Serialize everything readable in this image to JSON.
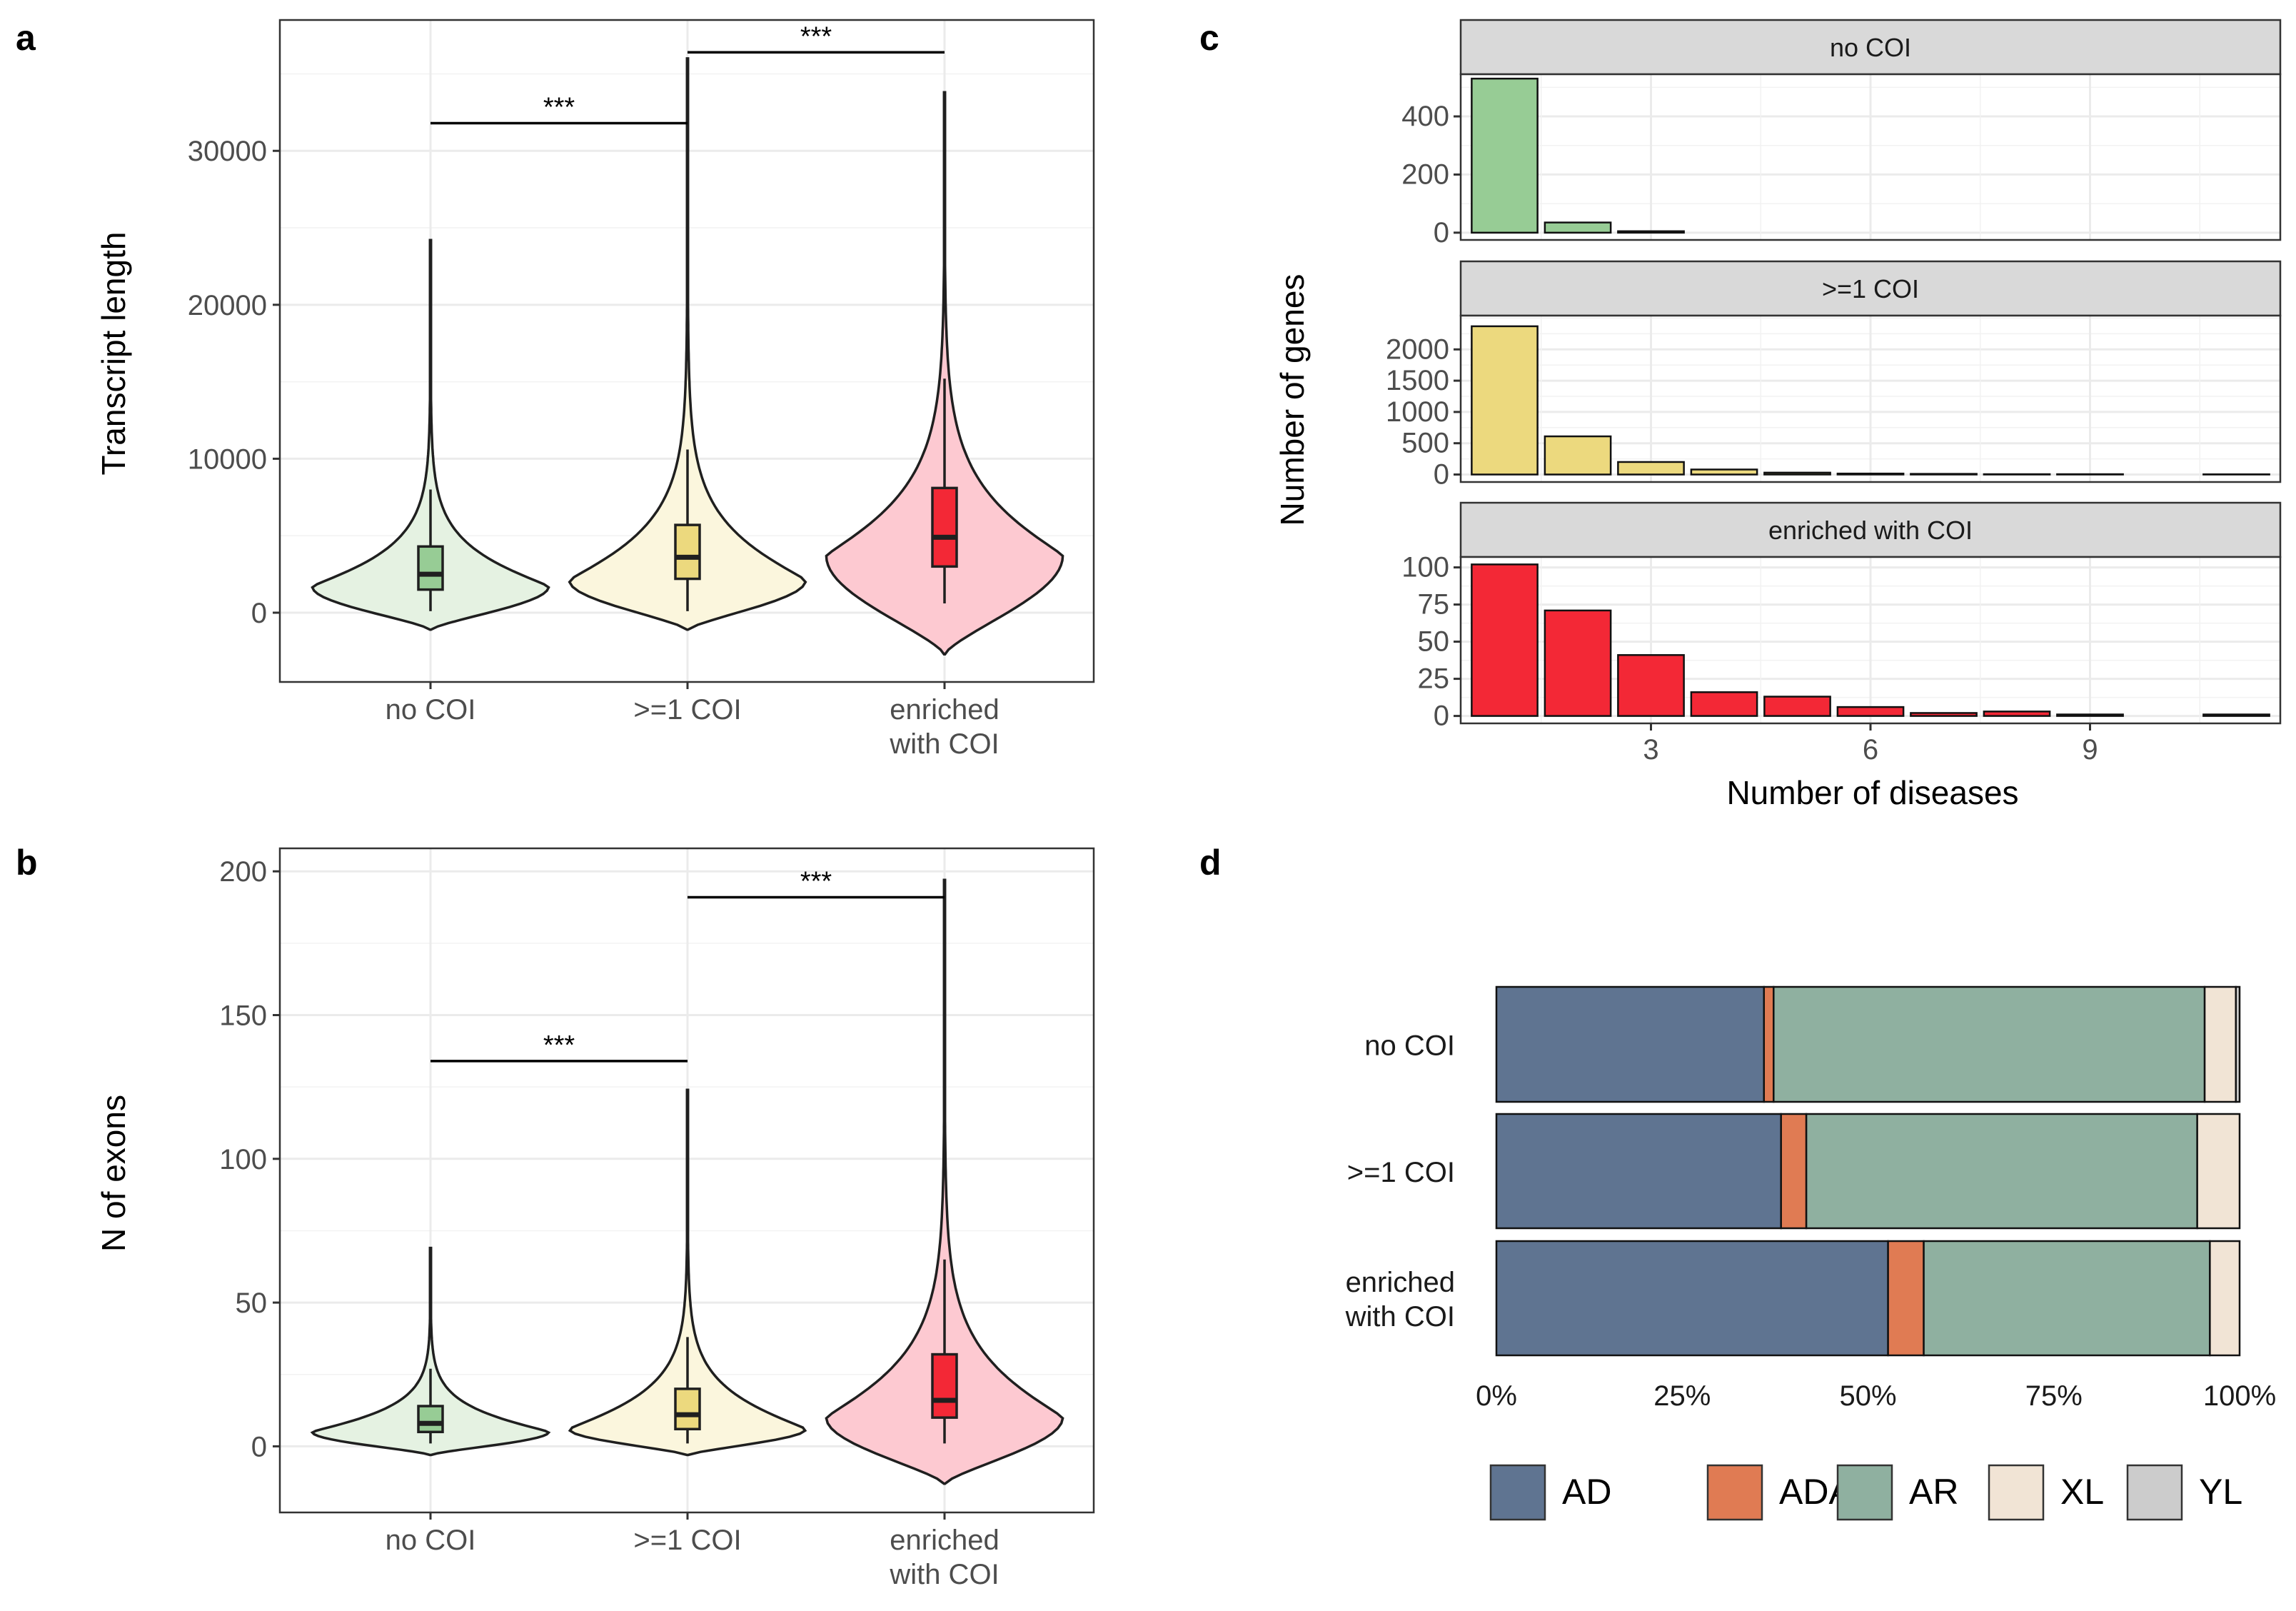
{
  "chart_data": [
    {
      "panel": "a",
      "type": "violin",
      "title": "",
      "xlabel": "",
      "ylabel": "Transcript length",
      "ylim": [
        -4500,
        38500
      ],
      "yticks": [
        0,
        10000,
        20000,
        30000
      ],
      "categories": [
        "no COI",
        ">=1 COI",
        "enriched\nwith COI"
      ],
      "category_lines": [
        [
          "no COI"
        ],
        [
          ">=1 COI"
        ],
        [
          "enriched",
          "with COI"
        ]
      ],
      "colors": [
        "#e5f2e2",
        "#fbf6dd",
        "#fdc9d1"
      ],
      "box_colors": [
        "#97cc95",
        "#ecd97e",
        "#f32836"
      ],
      "groups": [
        {
          "name": "no COI",
          "min_violin": -1100,
          "max_violin": 24200,
          "whisker_low": 100,
          "q1": 1500,
          "median": 2500,
          "q3": 4300,
          "whisker_high": 8000,
          "peak": 1700
        },
        {
          "name": ">=1 COI",
          "min_violin": -1100,
          "max_violin": 36000,
          "whisker_low": 100,
          "q1": 2200,
          "median": 3600,
          "q3": 5700,
          "whisker_high": 10600,
          "peak": 2100
        },
        {
          "name": "enriched with COI",
          "min_violin": -2700,
          "max_violin": 33800,
          "whisker_low": 600,
          "q1": 3000,
          "median": 4900,
          "q3": 8100,
          "whisker_high": 15200,
          "peak": 3700
        }
      ],
      "significance": [
        {
          "from": 0,
          "to": 1,
          "y": 31800,
          "label": "***"
        },
        {
          "from": 1,
          "to": 2,
          "y": 36400,
          "label": "***"
        }
      ]
    },
    {
      "panel": "b",
      "type": "violin",
      "title": "",
      "xlabel": "",
      "ylabel": "N of exons",
      "ylim": [
        -23,
        208
      ],
      "yticks": [
        0,
        50,
        100,
        150,
        200
      ],
      "categories": [
        "no COI",
        ">=1 COI",
        "enriched\nwith COI"
      ],
      "category_lines": [
        [
          "no COI"
        ],
        [
          ">=1 COI"
        ],
        [
          "enriched",
          "with COI"
        ]
      ],
      "colors": [
        "#e5f2e2",
        "#fbf6dd",
        "#fdc9d1"
      ],
      "box_colors": [
        "#97cc95",
        "#ecd97e",
        "#f32836"
      ],
      "groups": [
        {
          "name": "no COI",
          "min_violin": -3,
          "max_violin": 69,
          "whisker_low": 1,
          "q1": 5,
          "median": 8,
          "q3": 14,
          "whisker_high": 27,
          "peak": 5
        },
        {
          "name": ">=1 COI",
          "min_violin": -3,
          "max_violin": 124,
          "whisker_low": 1,
          "q1": 6,
          "median": 11,
          "q3": 20,
          "whisker_high": 38,
          "peak": 6
        },
        {
          "name": "enriched with COI",
          "min_violin": -13,
          "max_violin": 197,
          "whisker_low": 1,
          "q1": 10,
          "median": 16,
          "q3": 32,
          "whisker_high": 65,
          "peak": 10
        }
      ],
      "significance": [
        {
          "from": 0,
          "to": 1,
          "y": 134,
          "label": "***"
        },
        {
          "from": 1,
          "to": 2,
          "y": 191,
          "label": "***"
        }
      ]
    },
    {
      "panel": "c",
      "type": "bar",
      "title": "",
      "xlabel": "Number of diseases",
      "ylabel": "Number of genes",
      "xlim": [
        0.4,
        11.6
      ],
      "xticks": [
        3,
        6,
        9
      ],
      "facets": [
        {
          "label": "no COI",
          "color": "#97cc95",
          "ylim": [
            -25,
            545
          ],
          "yticks": [
            0,
            200,
            400
          ],
          "x": [
            1,
            2,
            3
          ],
          "values": [
            530,
            35,
            5
          ]
        },
        {
          "label": ">=1 COI",
          "color": "#ecd97e",
          "ylim": [
            -120,
            2540
          ],
          "yticks": [
            0,
            500,
            1000,
            1500,
            2000
          ],
          "x": [
            1,
            2,
            3,
            4,
            5,
            6,
            7,
            8,
            9,
            11
          ],
          "values": [
            2370,
            610,
            200,
            80,
            30,
            15,
            10,
            5,
            5,
            3
          ]
        },
        {
          "label": "enriched with COI",
          "color": "#f32836",
          "ylim": [
            -5,
            107
          ],
          "yticks": [
            0,
            25,
            50,
            75,
            100
          ],
          "x": [
            1,
            2,
            3,
            4,
            5,
            6,
            7,
            8,
            9,
            11
          ],
          "values": [
            102,
            71,
            41,
            16,
            13,
            6,
            2,
            3,
            1,
            1
          ]
        }
      ]
    },
    {
      "panel": "d",
      "type": "stacked-bar",
      "title": "",
      "xlabel": "",
      "ylabel": "",
      "orientation": "horizontal",
      "xlim": [
        0,
        1
      ],
      "xticks": [
        "0%",
        "25%",
        "50%",
        "75%",
        "100%"
      ],
      "categories": [
        "no COI",
        ">=1 COI",
        "enriched\nwith COI"
      ],
      "category_lines": [
        [
          "no COI"
        ],
        [
          ">=1 COI"
        ],
        [
          "enriched",
          "with COI"
        ]
      ],
      "series": [
        {
          "name": "AD",
          "color": "#5f7491",
          "values": [
            0.36,
            0.383,
            0.527
          ]
        },
        {
          "name": "ADAR",
          "color": "#e07b53",
          "values": [
            0.013,
            0.034,
            0.048
          ]
        },
        {
          "name": "AR",
          "color": "#8fb0a0",
          "values": [
            0.58,
            0.526,
            0.385
          ]
        },
        {
          "name": "XL",
          "color": "#f1e4d5",
          "values": [
            0.042,
            0.057,
            0.04
          ]
        },
        {
          "name": "YL",
          "color": "#cccccc",
          "values": [
            0.005,
            0,
            0
          ]
        }
      ],
      "legend": "bottom"
    }
  ],
  "panel_letters": [
    "a",
    "b",
    "c",
    "d"
  ]
}
